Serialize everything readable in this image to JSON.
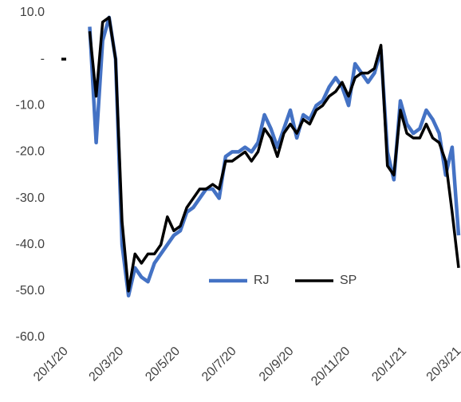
{
  "chart_data": {
    "type": "line",
    "x": [
      "20/1/20",
      "27/1/20",
      "3/2/20",
      "10/2/20",
      "17/2/20",
      "24/2/20",
      "2/3/20",
      "9/3/20",
      "16/3/20",
      "23/3/20",
      "30/3/20",
      "6/4/20",
      "13/4/20",
      "20/4/20",
      "27/4/20",
      "4/5/20",
      "11/5/20",
      "18/5/20",
      "25/5/20",
      "1/6/20",
      "8/6/20",
      "15/6/20",
      "22/6/20",
      "29/6/20",
      "6/7/20",
      "13/7/20",
      "20/7/20",
      "27/7/20",
      "3/8/20",
      "10/8/20",
      "17/8/20",
      "24/8/20",
      "31/8/20",
      "7/9/20",
      "14/9/20",
      "21/9/20",
      "28/9/20",
      "5/10/20",
      "12/10/20",
      "19/10/20",
      "26/10/20",
      "2/11/20",
      "9/11/20",
      "16/11/20",
      "23/11/20",
      "30/11/20",
      "7/12/20",
      "14/12/20",
      "21/12/20",
      "28/12/20",
      "4/1/21",
      "11/1/21",
      "18/1/21",
      "25/1/21",
      "1/2/21",
      "8/2/21",
      "15/2/21",
      "22/2/21",
      "1/3/21",
      "8/3/21",
      "15/3/21",
      "22/3/21"
    ],
    "series": [
      {
        "name": "RJ",
        "color": "#4472c4",
        "values": [
          null,
          null,
          null,
          null,
          7,
          -18,
          4,
          9,
          0,
          -40,
          -51,
          -45,
          -47,
          -48,
          -44,
          -42,
          -40,
          -38,
          -37,
          -33,
          -32,
          -30,
          -28,
          -28,
          -30,
          -21,
          -20,
          -20,
          -19,
          -20,
          -18,
          -12,
          -15,
          -19,
          -15,
          -11,
          -17,
          -12,
          -13,
          -10,
          -9,
          -6,
          -4,
          -6,
          -10,
          -1,
          -3,
          -5,
          -3,
          2,
          -20,
          -26,
          -9,
          -14,
          -16,
          -15,
          -11,
          -13,
          -16,
          -25,
          -19,
          -38
        ]
      },
      {
        "name": "SP",
        "color": "#000000",
        "values": [
          0,
          null,
          null,
          null,
          6,
          -8,
          8,
          9,
          0,
          -35,
          -50,
          -42,
          -44,
          -42,
          -42,
          -40,
          -34,
          -37,
          -36,
          -32,
          -30,
          -28,
          -28,
          -27,
          -28,
          -22,
          -22,
          -21,
          -20,
          -22,
          -20,
          -15,
          -17,
          -21,
          -16,
          -14,
          -16,
          -13,
          -14,
          -11,
          -10,
          -8,
          -7,
          -5,
          -8,
          -4,
          -3,
          -3,
          -2,
          3,
          -23,
          -25,
          -11,
          -16,
          -17,
          -17,
          -14,
          -17,
          -18,
          -22,
          -33,
          -45
        ]
      }
    ],
    "xlim": [
      "20/1/20",
      "22/3/21"
    ],
    "xticks": [
      "20/1/20",
      "20/3/20",
      "20/5/20",
      "20/7/20",
      "20/9/20",
      "20/11/20",
      "20/1/21",
      "20/3/21"
    ],
    "ylim": [
      -60,
      10
    ],
    "yticks": [
      {
        "value": 10,
        "label": "10.0"
      },
      {
        "value": 0,
        "label": "-"
      },
      {
        "value": -10,
        "label": "-10.0"
      },
      {
        "value": -20,
        "label": "-20.0"
      },
      {
        "value": -30,
        "label": "-30.0"
      },
      {
        "value": -40,
        "label": "-40.0"
      },
      {
        "value": -50,
        "label": "-50.0"
      },
      {
        "value": -60,
        "label": "-60.0"
      }
    ],
    "grid": false,
    "legend": "lower center"
  }
}
